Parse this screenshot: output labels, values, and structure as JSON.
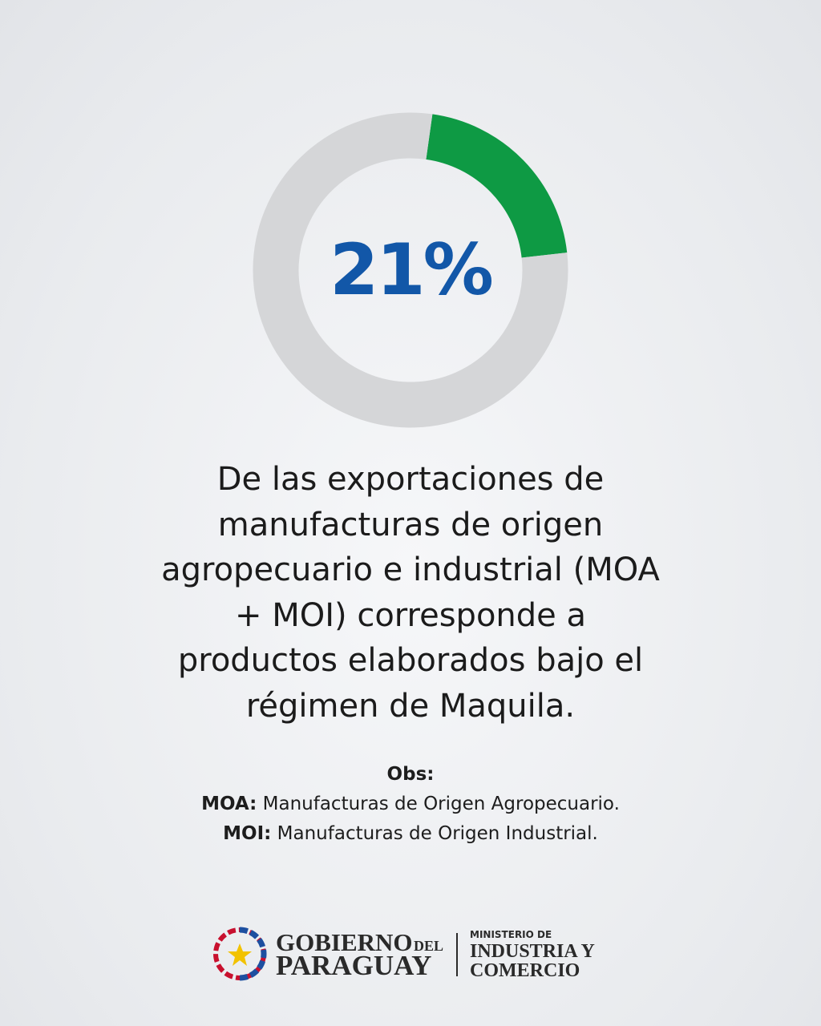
{
  "chart_data": {
    "type": "donut",
    "values": [
      21,
      79
    ],
    "value_labels": [
      "21%",
      null
    ],
    "colors": [
      "#0e9a44",
      "#d5d6d8"
    ],
    "label_color": "#1257a8"
  },
  "description": [
    "De las exportaciones de",
    "manufacturas de origen",
    "agropecuario e industrial (MOA",
    "+ MOI) corresponde a",
    "productos elaborados bajo el",
    "régimen de Maquila."
  ],
  "notes": {
    "heading": "Obs:",
    "items": [
      {
        "term": "MOA:",
        "text": "Manufacturas de Origen Agropecuario."
      },
      {
        "term": "MOI:",
        "text": "Manufacturas de Origen Industrial."
      }
    ]
  },
  "logo": {
    "gov_line1": "GOBIERNO",
    "gov_del": "DEL",
    "gov_line2": "PARAGUAY",
    "ministry_small": "MINISTERIO DE",
    "ministry_line1": "INDUSTRIA Y",
    "ministry_line2": "COMERCIO"
  }
}
